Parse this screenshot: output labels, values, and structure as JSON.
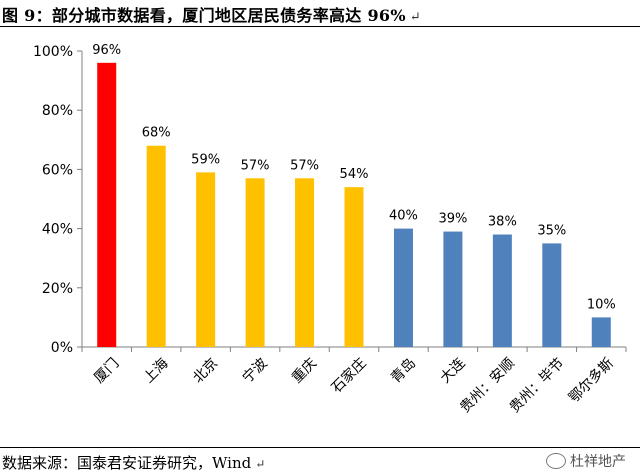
{
  "title": "图 9：部分城市数据看，厦门地区居民债务率高达 96%",
  "title_mark": "↵",
  "source": "数据来源：国泰君安证券研究，Wind",
  "source_mark": "↵",
  "watermark": "杜祥地产",
  "chart_data": {
    "type": "bar",
    "categories": [
      "厦门",
      "上海",
      "北京",
      "宁波",
      "重庆",
      "石家庄",
      "青岛",
      "大连",
      "贵州：安顺",
      "贵州：毕节",
      "鄂尔多斯"
    ],
    "values": [
      96,
      68,
      59,
      57,
      57,
      54,
      40,
      39,
      38,
      35,
      10
    ],
    "data_labels": [
      "96%",
      "68%",
      "59%",
      "57%",
      "57%",
      "54%",
      "40%",
      "39%",
      "38%",
      "35%",
      "10%"
    ],
    "colors": [
      "#FF0000",
      "#FFC000",
      "#FFC000",
      "#FFC000",
      "#FFC000",
      "#FFC000",
      "#4F81BD",
      "#4F81BD",
      "#4F81BD",
      "#4F81BD",
      "#4F81BD"
    ],
    "yticks": [
      "0%",
      "20%",
      "40%",
      "60%",
      "80%",
      "100%"
    ],
    "ylim": [
      0,
      100
    ],
    "grid": false,
    "title": "",
    "xlabel": "",
    "ylabel": ""
  }
}
